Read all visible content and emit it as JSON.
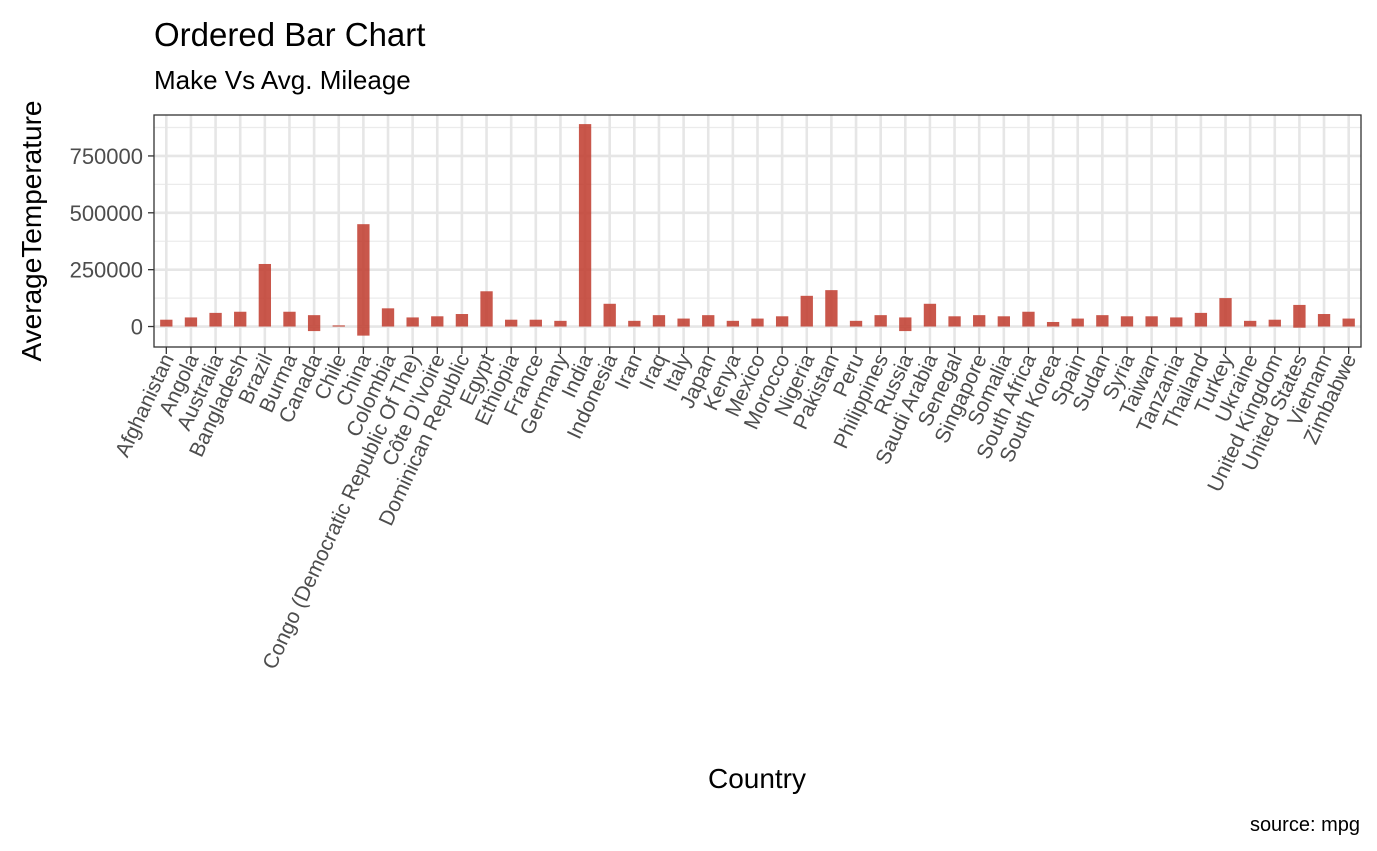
{
  "chart_data": {
    "type": "bar",
    "title": "Ordered Bar Chart",
    "subtitle": "Make Vs Avg. Mileage",
    "xlabel": "Country",
    "ylabel": "AverageTemperature",
    "caption": "source: mpg",
    "bar_color": "#c0392b",
    "grid": true,
    "legend": "none",
    "ylim": [
      -90000,
      930000
    ],
    "yticks": [
      0,
      250000,
      500000,
      750000
    ],
    "ytick_labels": [
      "0",
      "250000",
      "500000",
      "750000"
    ],
    "categories": [
      "Afghanistan",
      "Angola",
      "Australia",
      "Bangladesh",
      "Brazil",
      "Burma",
      "Canada",
      "Chile",
      "China",
      "Colombia",
      "Congo (Democratic Republic Of The)",
      "Côte D'Ivoire",
      "Dominican Republic",
      "Egypt",
      "Ethiopia",
      "France",
      "Germany",
      "India",
      "Indonesia",
      "Iran",
      "Iraq",
      "Italy",
      "Japan",
      "Kenya",
      "Mexico",
      "Morocco",
      "Nigeria",
      "Pakistan",
      "Peru",
      "Philippines",
      "Russia",
      "Saudi Arabia",
      "Senegal",
      "Singapore",
      "Somalia",
      "South Africa",
      "South Korea",
      "Spain",
      "Sudan",
      "Syria",
      "Taiwan",
      "Tanzania",
      "Thailand",
      "Turkey",
      "Ukraine",
      "United Kingdom",
      "United States",
      "Vietnam",
      "Zimbabwe"
    ],
    "bars": [
      {
        "max": 30000,
        "min": 0
      },
      {
        "max": 40000,
        "min": 0
      },
      {
        "max": 60000,
        "min": 0
      },
      {
        "max": 65000,
        "min": 0
      },
      {
        "max": 275000,
        "min": 0
      },
      {
        "max": 65000,
        "min": 0
      },
      {
        "max": 50000,
        "min": -20000
      },
      {
        "max": 5000,
        "min": 0
      },
      {
        "max": 450000,
        "min": -40000
      },
      {
        "max": 80000,
        "min": 0
      },
      {
        "max": 40000,
        "min": 0
      },
      {
        "max": 45000,
        "min": 0
      },
      {
        "max": 55000,
        "min": 0
      },
      {
        "max": 155000,
        "min": 0
      },
      {
        "max": 30000,
        "min": 0
      },
      {
        "max": 30000,
        "min": 0
      },
      {
        "max": 25000,
        "min": 0
      },
      {
        "max": 890000,
        "min": 0
      },
      {
        "max": 100000,
        "min": 0
      },
      {
        "max": 25000,
        "min": 0
      },
      {
        "max": 50000,
        "min": 0
      },
      {
        "max": 35000,
        "min": 0
      },
      {
        "max": 50000,
        "min": 0
      },
      {
        "max": 25000,
        "min": 0
      },
      {
        "max": 35000,
        "min": 0
      },
      {
        "max": 45000,
        "min": 0
      },
      {
        "max": 135000,
        "min": 0
      },
      {
        "max": 160000,
        "min": 0
      },
      {
        "max": 25000,
        "min": 0
      },
      {
        "max": 50000,
        "min": 0
      },
      {
        "max": 40000,
        "min": -20000
      },
      {
        "max": 100000,
        "min": 0
      },
      {
        "max": 45000,
        "min": 0
      },
      {
        "max": 50000,
        "min": 0
      },
      {
        "max": 45000,
        "min": 0
      },
      {
        "max": 65000,
        "min": 0
      },
      {
        "max": 20000,
        "min": 0
      },
      {
        "max": 35000,
        "min": 0
      },
      {
        "max": 50000,
        "min": 0
      },
      {
        "max": 45000,
        "min": 0
      },
      {
        "max": 45000,
        "min": 0
      },
      {
        "max": 40000,
        "min": 0
      },
      {
        "max": 60000,
        "min": 0
      },
      {
        "max": 125000,
        "min": 0
      },
      {
        "max": 25000,
        "min": 0
      },
      {
        "max": 30000,
        "min": 0
      },
      {
        "max": 95000,
        "min": -5000
      },
      {
        "max": 55000,
        "min": 0
      },
      {
        "max": 35000,
        "min": 0
      }
    ]
  }
}
